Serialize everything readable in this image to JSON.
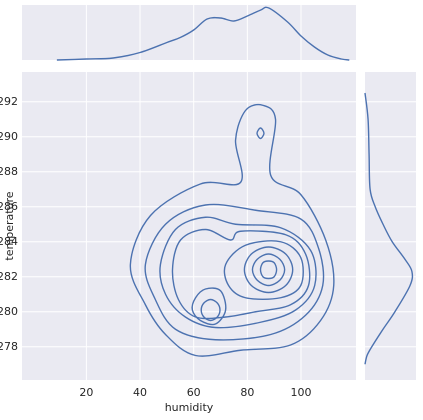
{
  "chart_data": {
    "type": "jointplot",
    "xlabel": "humidity",
    "ylabel": "temperature",
    "color": "#4c72b0",
    "xlim": [
      -4,
      120.5
    ],
    "ylim": [
      276.1,
      293.7
    ],
    "xticks": [
      20,
      40,
      60,
      80,
      100
    ],
    "yticks": [
      278,
      280,
      282,
      284,
      286,
      288,
      290,
      292
    ],
    "contours": [
      {
        "x": [
          36.4,
          43.9,
          62.5,
          77.5,
          75.6,
          79.3,
          85.7,
          90.5,
          88.7,
          99.9,
          109.2,
          112.2,
          107.3,
          96.1,
          77.5,
          60.7,
          49.5,
          42.0
        ],
        "y": [
          282.7,
          285.5,
          287.3,
          287.4,
          289.8,
          291.5,
          291.8,
          291.0,
          287.8,
          286.7,
          284.1,
          281.5,
          279.5,
          278.1,
          277.8,
          277.5,
          278.7,
          280.4
        ]
      },
      {
        "x": [
          86.2,
          84.9,
          83.6,
          84.9
        ],
        "y": [
          290.2,
          290.5,
          290.2,
          289.9
        ]
      },
      {
        "x": [
          42.0,
          49.5,
          64.4,
          83.1,
          99.9,
          106.6,
          108.1,
          101.7,
          88.7,
          68.1,
          53.2,
          45.7
        ],
        "y": [
          282.7,
          285.0,
          286.1,
          285.8,
          285.3,
          283.6,
          281.5,
          279.8,
          278.7,
          278.4,
          279.0,
          280.7
        ]
      },
      {
        "x": [
          47.6,
          53.2,
          64.4,
          75.6,
          92.4,
          103.6,
          105.1,
          98.0,
          84.9,
          68.1,
          56.9,
          49.5
        ],
        "y": [
          282.7,
          284.7,
          285.4,
          285.0,
          284.8,
          283.5,
          281.5,
          280.1,
          279.4,
          279.1,
          279.7,
          281.0
        ]
      },
      {
        "x": [
          52.1,
          55.1,
          64.4,
          73.7,
          77.5,
          94.3,
          101.7,
          102.8,
          96.1,
          83.1,
          71.9,
          60.7,
          54.3
        ],
        "y": [
          282.4,
          284.1,
          284.7,
          284.1,
          284.6,
          284.4,
          283.3,
          281.5,
          280.4,
          280.0,
          279.7,
          279.7,
          280.7
        ]
      },
      {
        "x": [
          71.9,
          79.3,
          92.4,
          99.9,
          99.9,
          92.4,
          79.3,
          73.0
        ],
        "y": [
          282.7,
          283.8,
          284.0,
          283.1,
          281.5,
          280.8,
          280.8,
          281.5
        ]
      },
      {
        "x": [
          60.7,
          64.4,
          70.0,
          71.9,
          68.1,
          62.5,
          59.5
        ],
        "y": [
          280.8,
          281.3,
          281.2,
          280.1,
          279.3,
          279.5,
          280.1
        ]
      },
      {
        "x": [
          96.9,
          94.3,
          87.9,
          81.5,
          78.9,
          81.5,
          87.9,
          94.3
        ],
        "y": [
          282.4,
          283.3,
          283.7,
          283.3,
          282.4,
          281.5,
          281.1,
          281.5
        ]
      },
      {
        "x": [
          93.9,
          92.1,
          87.9,
          83.7,
          81.9,
          83.7,
          87.9,
          92.1
        ],
        "y": [
          282.4,
          283.0,
          283.3,
          283.0,
          282.4,
          281.8,
          281.5,
          281.8
        ]
      },
      {
        "x": [
          90.9,
          90.0,
          87.9,
          85.8,
          84.9,
          85.8,
          87.9,
          90.0
        ],
        "y": [
          282.4,
          282.8,
          282.9,
          282.8,
          282.4,
          282.0,
          281.9,
          282.0
        ]
      },
      {
        "x": [
          69.8,
          68.8,
          66.3,
          63.8,
          62.8,
          63.8,
          66.3,
          68.8
        ],
        "y": [
          280.1,
          280.5,
          280.7,
          280.5,
          280.1,
          279.7,
          279.5,
          279.7
        ]
      }
    ],
    "marginal_x": {
      "ylim": [
        0,
        0.022
      ],
      "x": [
        9,
        20,
        30,
        40,
        50,
        55,
        60,
        65,
        70,
        75,
        80,
        85,
        88,
        95,
        100,
        105,
        110,
        115,
        118
      ],
      "values": [
        0,
        0.0004,
        0.0008,
        0.003,
        0.007,
        0.009,
        0.012,
        0.0164,
        0.0168,
        0.0156,
        0.0176,
        0.02,
        0.0208,
        0.0152,
        0.0096,
        0.0052,
        0.002,
        0.0004,
        0
      ]
    },
    "marginal_y": {
      "xlim": [
        0,
        0.3
      ],
      "y": [
        292.5,
        291,
        289,
        287,
        286,
        285,
        284,
        283,
        282.3,
        281.5,
        280,
        279,
        278,
        277.5,
        277
      ],
      "values": [
        0,
        0.018,
        0.024,
        0.03,
        0.06,
        0.106,
        0.16,
        0.235,
        0.276,
        0.265,
        0.176,
        0.106,
        0.04,
        0.012,
        0
      ]
    }
  }
}
